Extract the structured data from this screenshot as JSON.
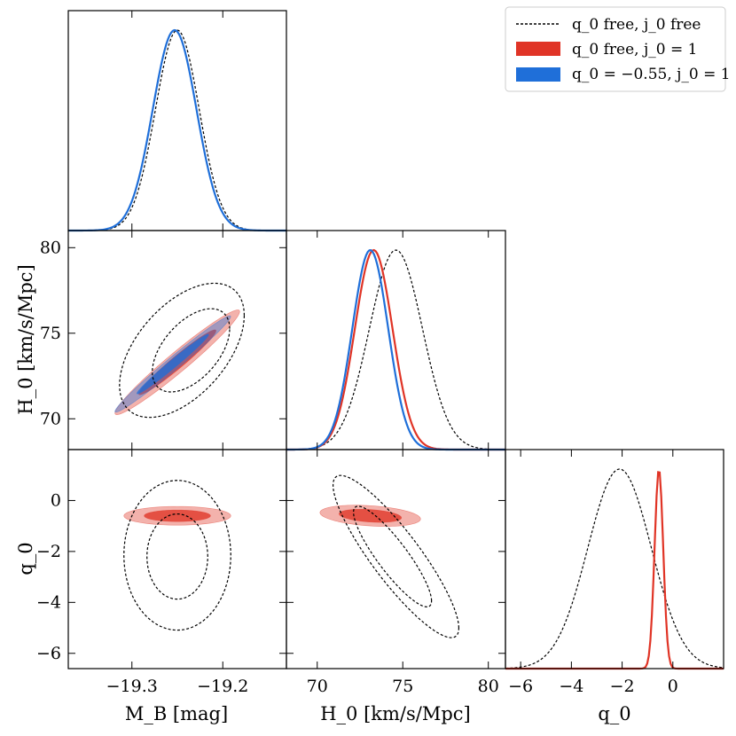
{
  "chart_data": {
    "type": "corner",
    "title": "",
    "parameters": [
      {
        "name": "M_B",
        "label": "M_B [mag]",
        "range": [
          -19.37,
          -19.13
        ],
        "ticks": [
          -19.3,
          -19.2
        ],
        "tick_labels": [
          "−19.3",
          "−19.2"
        ]
      },
      {
        "name": "H0",
        "label": "H_0 [km/s/Mpc]",
        "range": [
          68.2,
          81.0
        ],
        "ticks": [
          70,
          75,
          80
        ],
        "tick_labels": [
          "70",
          "75",
          "80"
        ]
      },
      {
        "name": "q0",
        "label": "q_0",
        "range": [
          -6.6,
          2.0
        ],
        "ticks": [
          -6,
          -4,
          -2,
          0
        ],
        "tick_labels": [
          "−6",
          "−4",
          "−2",
          "0"
        ]
      }
    ],
    "legend": {
      "position": "top-right",
      "entries": [
        {
          "label": "q_0 free, j_0 free",
          "style": "dashed",
          "color": "#000000"
        },
        {
          "label": "q_0 free, j_0 = 1",
          "style": "filled",
          "color": "#e03426"
        },
        {
          "label": "q_0 = −0.55, j_0 = 1",
          "style": "filled",
          "color": "#1f6fd9"
        }
      ]
    },
    "series": [
      {
        "name": "q0 free, j0 free",
        "color": "#000000",
        "style": "dashed",
        "marginals": {
          "M_B": {
            "mean": -19.25,
            "sigma": 0.024
          },
          "H0": {
            "mean": 74.6,
            "sigma": 1.55
          },
          "q0": {
            "mean": -2.1,
            "sigma": 1.25
          }
        },
        "contours": [
          {
            "pair": [
              "M_B",
              "H0"
            ],
            "level": "68%",
            "center": [
              -19.235,
              74.0
            ],
            "sigma": [
              0.028,
              1.6
            ],
            "corr": 0.52
          },
          {
            "pair": [
              "M_B",
              "H0"
            ],
            "level": "95%",
            "center": [
              -19.245,
              74.0
            ],
            "sigma": [
              0.028,
              1.6
            ],
            "corr": 0.52
          },
          {
            "pair": [
              "M_B",
              "q0"
            ],
            "level": "68%",
            "center": [
              -19.25,
              -2.2
            ],
            "sigma": [
              0.022,
              1.1
            ],
            "corr": 0.0
          },
          {
            "pair": [
              "M_B",
              "q0"
            ],
            "level": "95%",
            "center": [
              -19.25,
              -2.15
            ],
            "sigma": [
              0.024,
              1.2
            ],
            "corr": 0.0
          },
          {
            "pair": [
              "H0",
              "q0"
            ],
            "level": "68%",
            "center": [
              74.4,
              -2.2
            ],
            "sigma": [
              1.5,
              1.3
            ],
            "corr": -0.88
          },
          {
            "pair": [
              "H0",
              "q0"
            ],
            "level": "95%",
            "center": [
              74.6,
              -2.2
            ],
            "sigma": [
              1.5,
              1.3
            ],
            "corr": -0.88
          }
        ]
      },
      {
        "name": "q0 free, j0 = 1",
        "color": "#e03426",
        "style": "filled",
        "marginals": {
          "H0": {
            "mean": 73.3,
            "sigma": 1.1
          },
          "q0": {
            "mean": -0.55,
            "sigma": 0.17
          }
        },
        "contours": [
          {
            "pair": [
              "M_B",
              "H0"
            ],
            "level": "68%",
            "center": [
              -19.25,
              73.3
            ],
            "sigma": [
              0.028,
              1.25
            ],
            "corr": 0.97
          },
          {
            "pair": [
              "M_B",
              "H0"
            ],
            "level": "95%",
            "center": [
              -19.25,
              73.3
            ],
            "sigma": [
              0.028,
              1.25
            ],
            "corr": 0.97
          },
          {
            "pair": [
              "M_B",
              "q0"
            ],
            "level": "68%",
            "center": [
              -19.25,
              -0.6
            ],
            "sigma": [
              0.024,
              0.15
            ],
            "corr": 0.0
          },
          {
            "pair": [
              "M_B",
              "q0"
            ],
            "level": "95%",
            "center": [
              -19.25,
              -0.6
            ],
            "sigma": [
              0.024,
              0.15
            ],
            "corr": 0.0
          },
          {
            "pair": [
              "H0",
              "q0"
            ],
            "level": "68%",
            "center": [
              73.1,
              -0.6
            ],
            "sigma": [
              1.2,
              0.17
            ],
            "corr": -0.3
          },
          {
            "pair": [
              "H0",
              "q0"
            ],
            "level": "95%",
            "center": [
              73.1,
              -0.6
            ],
            "sigma": [
              1.2,
              0.17
            ],
            "corr": -0.3
          }
        ]
      },
      {
        "name": "q0 = -0.55, j0 = 1",
        "color": "#1f6fd9",
        "style": "filled",
        "marginals": {
          "M_B": {
            "mean": -19.253,
            "sigma": 0.024
          },
          "H0": {
            "mean": 73.1,
            "sigma": 1.05
          }
        },
        "contours": [
          {
            "pair": [
              "M_B",
              "H0"
            ],
            "level": "68%",
            "center": [
              -19.255,
              73.2
            ],
            "sigma": [
              0.026,
              1.15
            ],
            "corr": 0.985
          },
          {
            "pair": [
              "M_B",
              "H0"
            ],
            "level": "95%",
            "center": [
              -19.255,
              73.2
            ],
            "sigma": [
              0.026,
              1.15
            ],
            "corr": 0.985
          }
        ]
      }
    ]
  }
}
